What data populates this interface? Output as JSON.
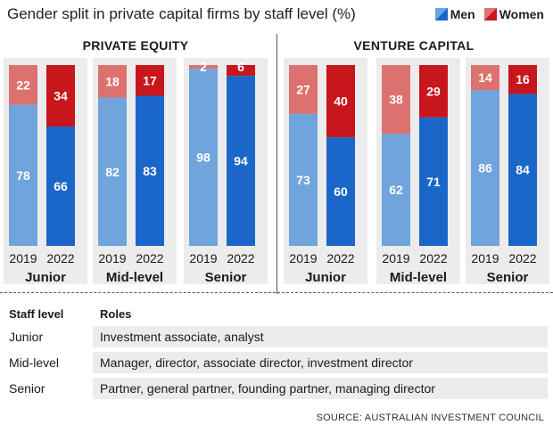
{
  "title": "Gender split in private capital firms by staff level (%)",
  "legend": {
    "men": "Men",
    "women": "Women"
  },
  "colors": {
    "men_2019": "#6fa4dd",
    "men_2022": "#1a66c9",
    "women_2019": "#dc7270",
    "women_2022": "#c8161d",
    "panel_bg": "#ececec"
  },
  "chart_data": [
    {
      "type": "bar",
      "stacked": true,
      "title": "PRIVATE EQUITY",
      "groups": [
        {
          "name": "Junior",
          "years": [
            "2019",
            "2022"
          ],
          "men": [
            78,
            66
          ],
          "women": [
            22,
            34
          ]
        },
        {
          "name": "Mid-level",
          "years": [
            "2019",
            "2022"
          ],
          "men": [
            82,
            83
          ],
          "women": [
            18,
            17
          ]
        },
        {
          "name": "Senior",
          "years": [
            "2019",
            "2022"
          ],
          "men": [
            98,
            94
          ],
          "women": [
            2,
            6
          ]
        }
      ]
    },
    {
      "type": "bar",
      "stacked": true,
      "title": "VENTURE CAPITAL",
      "groups": [
        {
          "name": "Junior",
          "years": [
            "2019",
            "2022"
          ],
          "men": [
            73,
            60
          ],
          "women": [
            27,
            40
          ]
        },
        {
          "name": "Mid-level",
          "years": [
            "2019",
            "2022"
          ],
          "men": [
            62,
            71
          ],
          "women": [
            38,
            29
          ]
        },
        {
          "name": "Senior",
          "years": [
            "2019",
            "2022"
          ],
          "men": [
            86,
            84
          ],
          "women": [
            14,
            16
          ]
        }
      ]
    }
  ],
  "table": {
    "header_level": "Staff level",
    "header_roles": "Roles",
    "rows": [
      {
        "level": "Junior",
        "roles": "Investment associate, analyst"
      },
      {
        "level": "Mid-level",
        "roles": "Manager, director, associate director, investment director"
      },
      {
        "level": "Senior",
        "roles": "Partner, general partner, founding partner, managing director"
      }
    ]
  },
  "source": "SOURCE: AUSTRALIAN INVESTMENT COUNCIL"
}
